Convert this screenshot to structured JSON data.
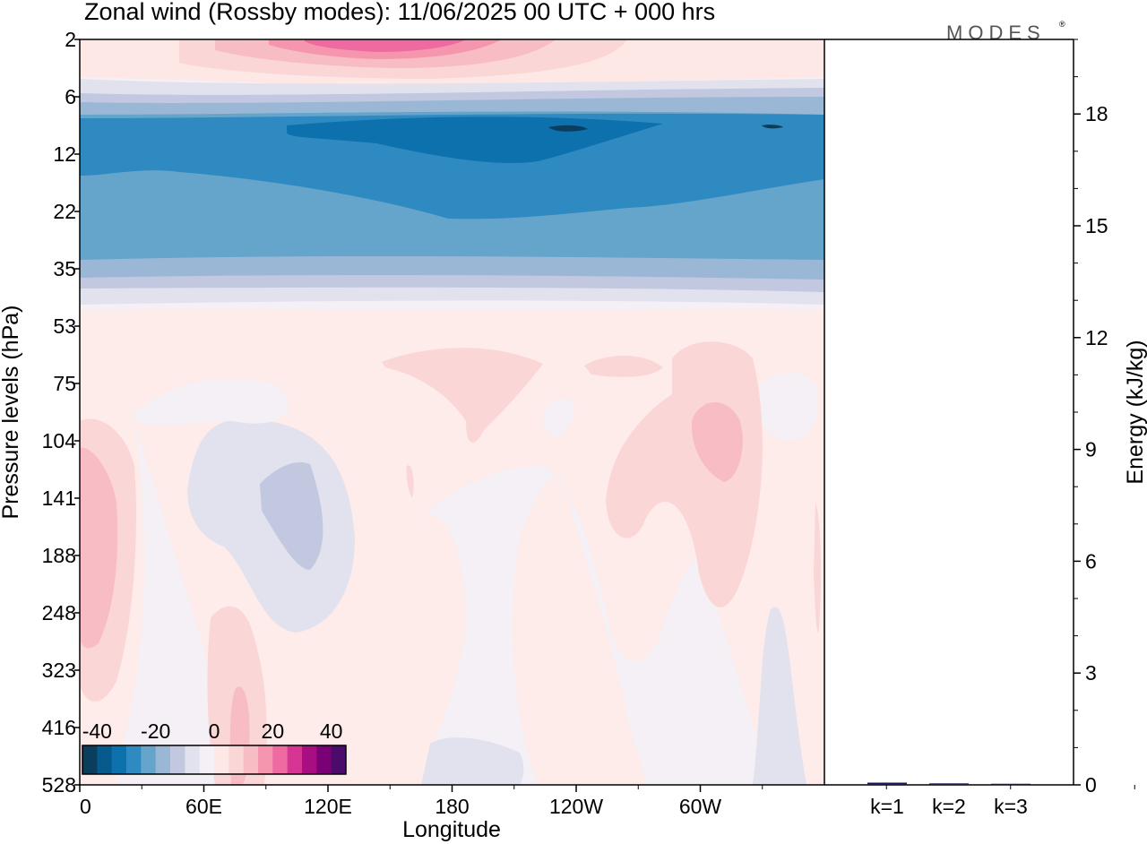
{
  "title": "Zonal wind (Rossby modes):  11/06/2025  00 UTC  + 000 hrs",
  "logo": "MODES",
  "logo_mark": "®",
  "colors": {
    "levels_neg": [
      "#0b3d5c",
      "#075a8c",
      "#0c71ad",
      "#2f8ac1",
      "#65a5cc",
      "#9ab8d6",
      "#c1c8df",
      "#e2e2ee"
    ],
    "near_zero": "#f4f0f5",
    "levels_pos": [
      "#fde8e6",
      "#fbd6d6",
      "#f8bcc4",
      "#f595ae",
      "#ee6aa0",
      "#d63593",
      "#a80d82",
      "#7a0175",
      "#4c0a6b"
    ]
  },
  "chart_data": [
    {
      "type": "heatmap",
      "title": "Zonal wind (Rossby modes):  11/06/2025  00 UTC  + 000 hrs",
      "xlabel": "Longitude",
      "ylabel": "Pressure levels (hPa)",
      "x_ticks": [
        "0",
        "60E",
        "120E",
        "180",
        "120W",
        "60W"
      ],
      "y_ticks": [
        "2",
        "6",
        "12",
        "22",
        "35",
        "53",
        "75",
        "104",
        "141",
        "188",
        "248",
        "323",
        "416",
        "528"
      ],
      "y_order": "top-to-bottom",
      "colorbar": {
        "ticks": [
          "-40",
          "-20",
          "0",
          "20",
          "40"
        ],
        "range": [
          -45,
          45
        ],
        "placement": "bottom-left inside"
      },
      "bands": [
        {
          "from_level": "2",
          "to_level": "5",
          "value": 15,
          "note": "pink maximum near 180"
        },
        {
          "from_level": "6",
          "to_level": "8",
          "value": -10
        },
        {
          "from_level": "8",
          "to_level": "22",
          "value": -35
        },
        {
          "from_level": "22",
          "to_level": "35",
          "value": -22
        },
        {
          "from_level": "35",
          "to_level": "53",
          "value": -5
        },
        {
          "from_level": "53",
          "to_level": "528",
          "value": 2
        }
      ]
    },
    {
      "type": "bar",
      "categories": [
        "k=1",
        "k=2",
        "k=3"
      ],
      "values": [
        0.06,
        0.04,
        0.03
      ],
      "ylabel": "Energy (kJ/kg)",
      "y_ticks": [
        "0",
        "3",
        "6",
        "9",
        "12",
        "15",
        "18"
      ],
      "ylim": [
        0,
        20
      ],
      "bar_color": "#1a1a55"
    }
  ]
}
